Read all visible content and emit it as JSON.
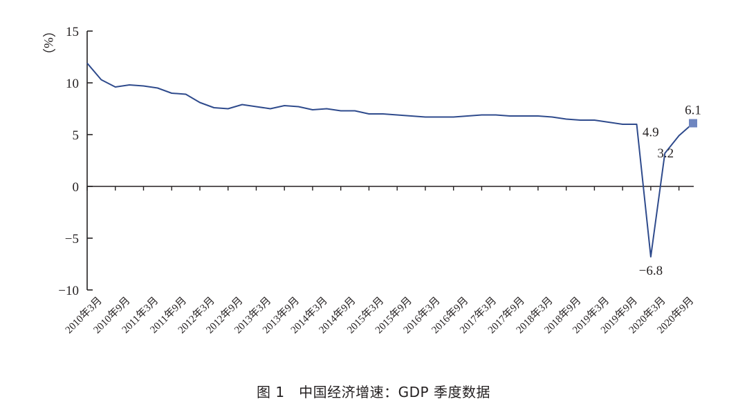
{
  "caption": "图 1　中国经济增速：GDP 季度数据",
  "colors": {
    "line": "#2e4a8c",
    "end_marker": "#6f86c0",
    "axis": "#231f20"
  },
  "chart_data": {
    "type": "line",
    "ylabel": "（%）",
    "ylim": [
      -10,
      15
    ],
    "yticks": [
      15,
      10,
      5,
      0,
      -5,
      -10
    ],
    "grid": false,
    "categories": [
      "2010年3月",
      "2010年9月",
      "2011年3月",
      "2011年9月",
      "2012年3月",
      "2012年9月",
      "2013年3月",
      "2013年9月",
      "2014年3月",
      "2014年9月",
      "2015年3月",
      "2015年9月",
      "2016年3月",
      "2016年9月",
      "2017年3月",
      "2017年9月",
      "2018年3月",
      "2018年9月",
      "2019年3月",
      "2019年9月",
      "2020年3月",
      "2020年9月"
    ],
    "x": [
      "2010Q1",
      "2010Q2",
      "2010Q3",
      "2010Q4",
      "2011Q1",
      "2011Q2",
      "2011Q3",
      "2011Q4",
      "2012Q1",
      "2012Q2",
      "2012Q3",
      "2012Q4",
      "2013Q1",
      "2013Q2",
      "2013Q3",
      "2013Q4",
      "2014Q1",
      "2014Q2",
      "2014Q3",
      "2014Q4",
      "2015Q1",
      "2015Q2",
      "2015Q3",
      "2015Q4",
      "2016Q1",
      "2016Q2",
      "2016Q3",
      "2016Q4",
      "2017Q1",
      "2017Q2",
      "2017Q3",
      "2017Q4",
      "2018Q1",
      "2018Q2",
      "2018Q3",
      "2018Q4",
      "2019Q1",
      "2019Q2",
      "2019Q3",
      "2019Q4",
      "2020Q1",
      "2020Q2",
      "2020Q3",
      "2020Q4"
    ],
    "series": [
      {
        "values": [
          11.9,
          10.3,
          9.6,
          9.8,
          9.7,
          9.5,
          9.0,
          8.9,
          8.1,
          7.6,
          7.5,
          7.9,
          7.7,
          7.5,
          7.8,
          7.7,
          7.4,
          7.5,
          7.3,
          7.3,
          7.0,
          7.0,
          6.9,
          6.8,
          6.7,
          6.7,
          6.7,
          6.8,
          6.9,
          6.9,
          6.8,
          6.8,
          6.8,
          6.7,
          6.5,
          6.4,
          6.4,
          6.2,
          6.0,
          6.0,
          -6.8,
          3.2,
          4.9,
          6.1
        ]
      }
    ],
    "annotations": [
      {
        "x": "2020Q1",
        "value": -6.8,
        "text": "−6.8"
      },
      {
        "x": "2020Q2",
        "value": 3.2,
        "text": "3.2"
      },
      {
        "x": "2020Q3",
        "value": 4.9,
        "text": "4.9"
      },
      {
        "x": "2020Q4",
        "value": 6.1,
        "text": "6.1"
      }
    ]
  }
}
